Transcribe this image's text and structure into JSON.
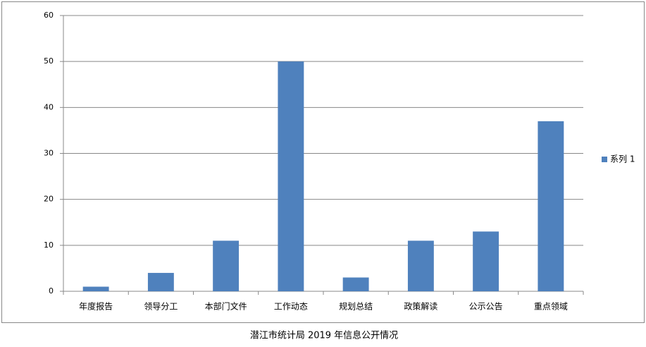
{
  "chart_data": {
    "type": "bar",
    "caption": "潜江市统计局 2019 年信息公开情况",
    "categories": [
      "年度报告",
      "领导分工",
      "本部门文件",
      "工作动态",
      "规划总结",
      "政策解读",
      "公示公告",
      "重点领域"
    ],
    "series": [
      {
        "name": "系列 1",
        "color": "#4f81bd",
        "values": [
          1,
          4,
          11,
          50,
          3,
          11,
          13,
          37
        ]
      }
    ],
    "ylim": [
      0,
      60
    ],
    "yticks": [
      0,
      10,
      20,
      30,
      40,
      50,
      60
    ],
    "grid": true,
    "legend": "right"
  }
}
